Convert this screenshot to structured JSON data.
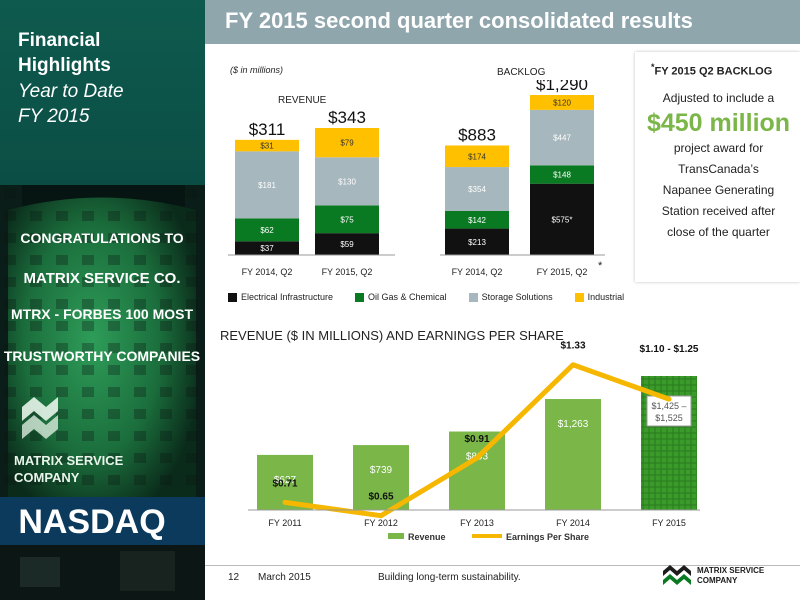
{
  "slide": {
    "title": "FY 2015 second quarter consolidated results",
    "page_number": "12",
    "date": "March 2015",
    "tagline": "Building long-term sustainability.",
    "company_logo_text": [
      "MATRIX SERVICE",
      "COMPANY"
    ]
  },
  "left_panel": {
    "title_lines": [
      "Financial",
      "Highlights"
    ],
    "subtitle_lines": [
      "Year to Date",
      "FY 2015"
    ],
    "photo_sign_lines": [
      "CONGRATULATIONS TO",
      "MATRIX SERVICE CO.",
      "MTRX - FORBES 100 MOST",
      "TRUSTWORTHY COMPANIES"
    ],
    "photo_logo_lines": [
      "MATRIX SERVICE",
      "COMPANY"
    ],
    "photo_exchange": "NASDAQ"
  },
  "callout": {
    "heading_mark": "*",
    "heading": "FY 2015 Q2 BACKLOG",
    "line1": "Adjusted to include a",
    "amount": "$450 million",
    "line2": "project award for",
    "line3": "TransCanada’s",
    "line4": "Napanee Generating",
    "line5": "Station received after",
    "line6": "close of the quarter"
  },
  "colors": {
    "title_bar": "#8fa6ad",
    "electrical": "#111111",
    "oil_gas": "#0a7a22",
    "storage": "#a6b7bd",
    "industrial": "#ffc000",
    "revenue_bar": "#7ab648",
    "eps_line": "#f6b700",
    "forecast_bar": "#3a9b2a",
    "accent_green": "#7ab648"
  },
  "chart_data": [
    {
      "type": "bar",
      "stacked": true,
      "unit_note": "($ in millions)",
      "group_labels": [
        "REVENUE",
        "BACKLOG"
      ],
      "categories": [
        "FY 2014, Q2",
        "FY 2015, Q2",
        "FY 2014, Q2",
        "FY 2015, Q2"
      ],
      "category_marks": [
        "",
        "",
        "",
        "*"
      ],
      "group_of_category": [
        0,
        0,
        1,
        1
      ],
      "series": [
        {
          "name": "Electrical Infrastructure",
          "values": [
            37,
            59,
            213,
            575
          ],
          "labels": [
            "$37",
            "$59",
            "$213",
            "$575*"
          ]
        },
        {
          "name": "Oil Gas & Chemical",
          "values": [
            62,
            75,
            142,
            148
          ],
          "labels": [
            "$62",
            "$75",
            "$142",
            "$148"
          ]
        },
        {
          "name": "Storage Solutions",
          "values": [
            181,
            130,
            354,
            447
          ],
          "labels": [
            "$181",
            "$130",
            "$354",
            "$447"
          ]
        },
        {
          "name": "Industrial",
          "values": [
            31,
            79,
            174,
            120
          ],
          "labels": [
            "$31",
            "$79",
            "$174",
            "$120"
          ]
        }
      ],
      "totals": [
        "$311",
        "$343",
        "$883",
        "$1,290"
      ],
      "total_values": [
        311,
        343,
        883,
        1290
      ],
      "legend": "bottom"
    },
    {
      "type": "bar",
      "title": "REVENUE ($ IN MILLIONS) AND EARNINGS PER SHARE",
      "categories": [
        "FY 2011",
        "FY 2012",
        "FY 2013",
        "FY 2014",
        "FY 2015"
      ],
      "series": [
        {
          "name": "Revenue",
          "kind": "bar",
          "values": [
            627,
            739,
            893,
            1263,
            1500
          ],
          "labels": [
            "$627",
            "$739",
            "$893",
            "$1,263",
            "$1,425 – $1,525"
          ],
          "forecast_index": 4
        },
        {
          "name": "Earnings Per Share",
          "kind": "line",
          "values": [
            0.71,
            0.65,
            0.91,
            1.33,
            1.175
          ],
          "labels": [
            "$0.71",
            "$0.65",
            "$0.91",
            "$1.33",
            "$1.10 - $1.25"
          ]
        }
      ],
      "legend": "bottom"
    }
  ]
}
